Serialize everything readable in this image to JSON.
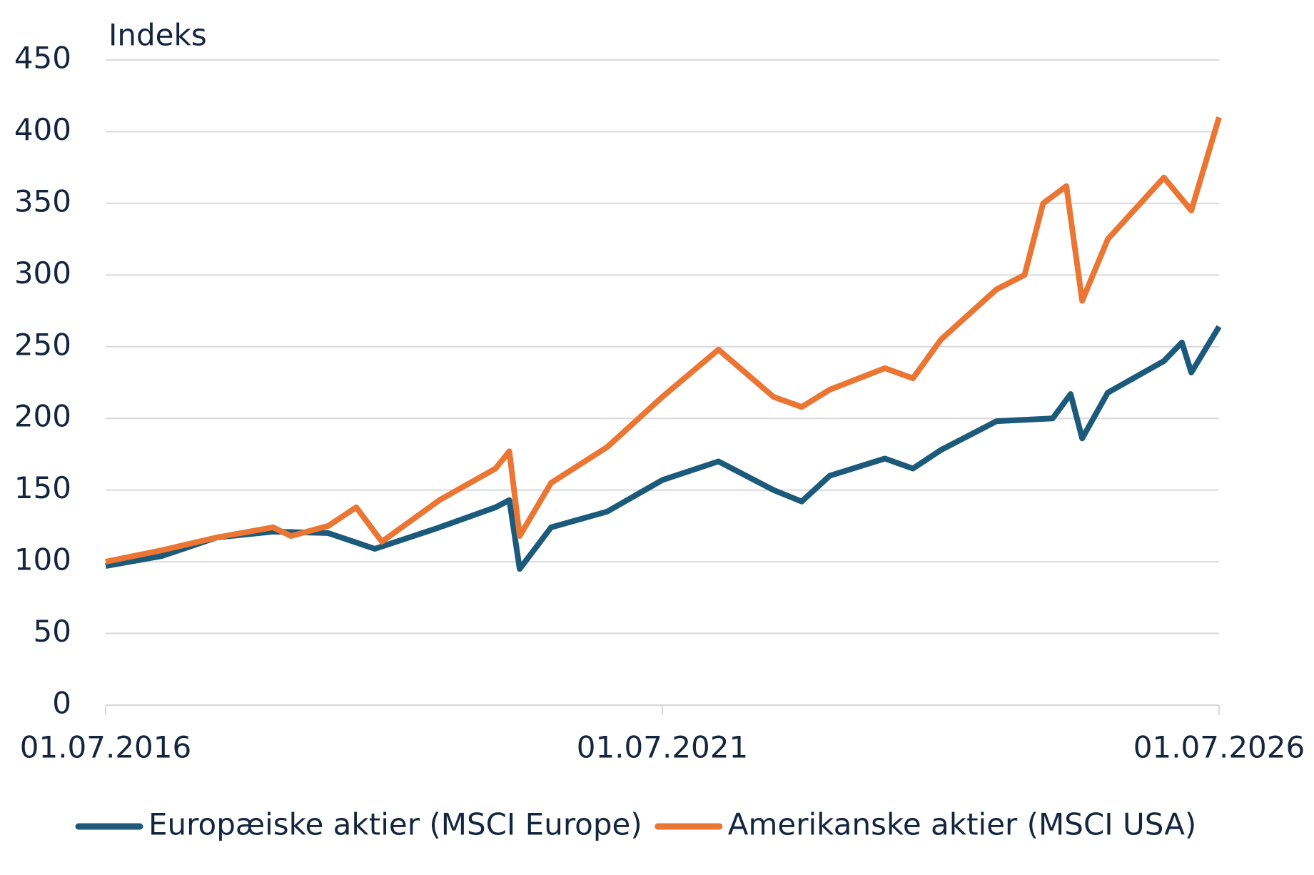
{
  "chart_data": {
    "type": "line",
    "y_label": "Indeks",
    "xlim": [
      "01.07.2016",
      "01.07.2026"
    ],
    "xticks": [
      "01.07.2016",
      "01.07.2021",
      "01.07.2026"
    ],
    "ylim": [
      0,
      450
    ],
    "yticks": [
      0,
      50,
      100,
      150,
      200,
      250,
      300,
      350,
      400,
      450
    ],
    "grid": true,
    "legend": "bottom",
    "series": [
      {
        "name": "Europæiske aktier (MSCI Europe)",
        "color": "#1b5a7a",
        "x": [
          "01.07.2016",
          "01.01.2017",
          "01.07.2017",
          "01.01.2018",
          "01.07.2018",
          "01.12.2018",
          "01.07.2019",
          "01.01.2020",
          "15.02.2020",
          "20.03.2020",
          "01.07.2020",
          "01.01.2021",
          "01.07.2021",
          "01.01.2022",
          "01.07.2022",
          "01.10.2022",
          "01.01.2023",
          "01.07.2023",
          "01.10.2023",
          "01.01.2024",
          "01.07.2024",
          "01.01.2025",
          "01.03.2025",
          "08.04.2025",
          "01.07.2025",
          "01.01.2026",
          "01.03.2026",
          "01.04.2026",
          "01.07.2026"
        ],
        "values": [
          97,
          104,
          117,
          121,
          120,
          109,
          124,
          138,
          143,
          95,
          124,
          135,
          157,
          170,
          150,
          142,
          160,
          172,
          165,
          178,
          198,
          200,
          217,
          186,
          218,
          240,
          253,
          232,
          264
        ]
      },
      {
        "name": "Amerikanske aktier (MSCI USA)",
        "color": "#eb7532",
        "x": [
          "01.07.2016",
          "01.01.2017",
          "01.07.2017",
          "01.01.2018",
          "01.03.2018",
          "01.07.2018",
          "01.10.2018",
          "24.12.2018",
          "01.07.2019",
          "01.01.2020",
          "15.02.2020",
          "20.03.2020",
          "01.07.2020",
          "01.01.2021",
          "01.07.2021",
          "01.01.2022",
          "01.07.2022",
          "01.10.2022",
          "01.01.2023",
          "01.07.2023",
          "01.10.2023",
          "01.01.2024",
          "01.07.2024",
          "01.10.2024",
          "01.12.2024",
          "15.02.2025",
          "08.04.2025",
          "01.07.2025",
          "01.01.2026",
          "01.04.2026",
          "01.07.2026"
        ],
        "values": [
          100,
          108,
          117,
          124,
          118,
          125,
          138,
          114,
          143,
          165,
          177,
          118,
          155,
          180,
          215,
          248,
          215,
          208,
          220,
          235,
          228,
          255,
          290,
          300,
          350,
          362,
          282,
          325,
          368,
          345,
          410
        ]
      }
    ]
  }
}
